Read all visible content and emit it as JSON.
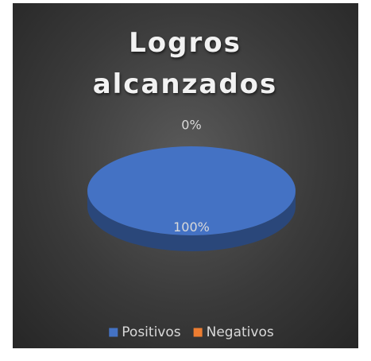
{
  "chart_data": {
    "type": "pie",
    "title": "Logros alcanzados",
    "categories": [
      "Positivos",
      "Negativos"
    ],
    "values": [
      100,
      0
    ],
    "value_labels": [
      "100%",
      "0%"
    ],
    "colors": [
      "#4472c4",
      "#ed7d31"
    ],
    "legend": "bottom"
  }
}
